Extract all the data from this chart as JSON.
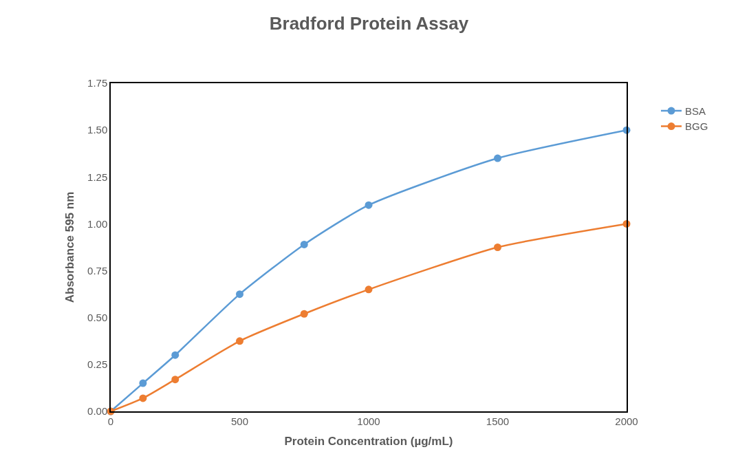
{
  "chart_data": {
    "type": "line",
    "title": "Bradford Protein Assay",
    "xlabel": "Protein Concentration (µg/mL)",
    "ylabel": "Absorbance 595 nm",
    "x": [
      0,
      125,
      250,
      500,
      750,
      1000,
      1500,
      2000
    ],
    "series": [
      {
        "name": "BSA",
        "color": "#5b9bd5",
        "values": [
          0,
          0.15,
          0.3,
          0.625,
          0.89,
          1.1,
          1.35,
          1.5
        ]
      },
      {
        "name": "BGG",
        "color": "#ed7d31",
        "values": [
          0,
          0.07,
          0.17,
          0.375,
          0.52,
          0.65,
          0.875,
          1.0
        ]
      }
    ],
    "xlim": [
      0,
      2000
    ],
    "xticks": [
      0,
      500,
      1000,
      1500,
      2000
    ],
    "ylim": [
      0,
      1.75
    ],
    "yticks": [
      {
        "value": 0,
        "label": "0.00"
      },
      {
        "value": 0.25,
        "label": "0.25"
      },
      {
        "value": 0.5,
        "label": "0.50"
      },
      {
        "value": 0.75,
        "label": "0.75"
      },
      {
        "value": 1,
        "label": "1.00"
      },
      {
        "value": 1.25,
        "label": "1.25"
      },
      {
        "value": 1.5,
        "label": "1.50"
      },
      {
        "value": 1.75,
        "label": "1.75"
      }
    ],
    "legend": "right",
    "marker": "circle",
    "line_style": "solid"
  }
}
